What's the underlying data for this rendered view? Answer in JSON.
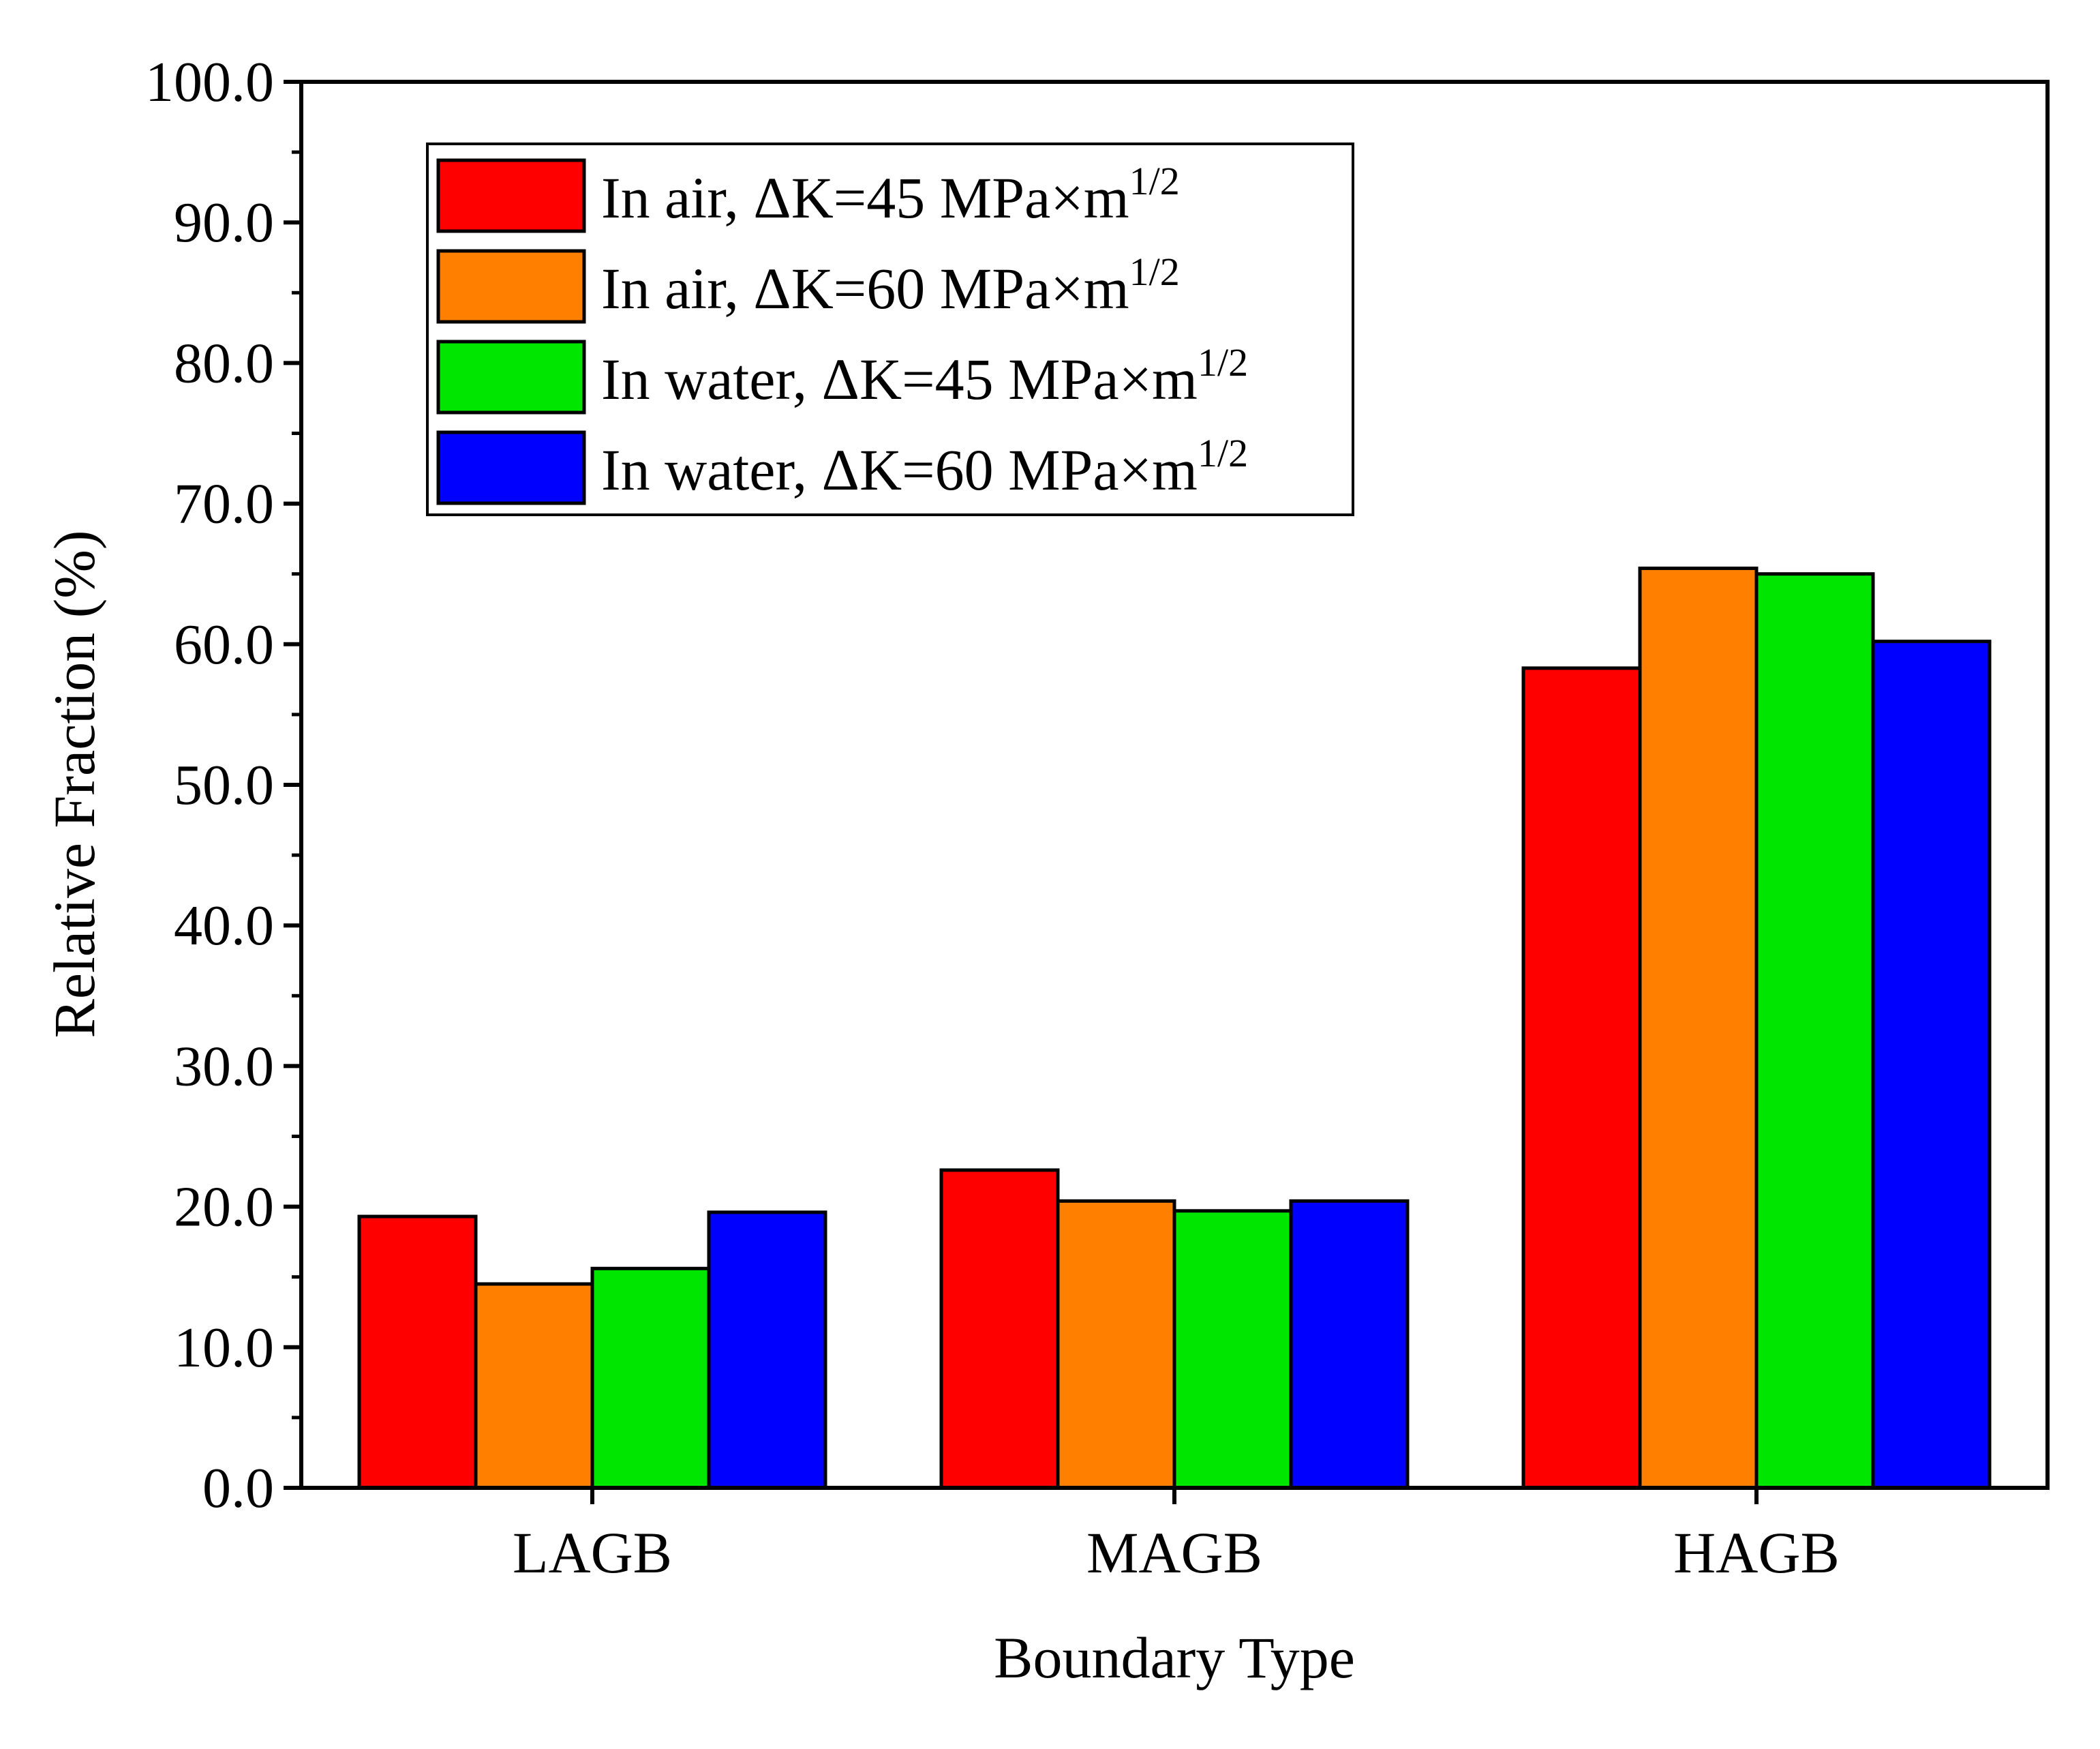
{
  "chart_data": {
    "type": "bar",
    "title": "",
    "xlabel": "Boundary Type",
    "ylabel": "Relative Fraction (%)",
    "ylim": [
      0,
      100
    ],
    "y_ticks": [
      0,
      10,
      20,
      30,
      40,
      50,
      60,
      70,
      80,
      90,
      100
    ],
    "y_tick_labels": [
      "0.0",
      "10.0",
      "20.0",
      "30.0",
      "40.0",
      "50.0",
      "60.0",
      "70.0",
      "80.0",
      "90.0",
      "100.0"
    ],
    "categories": [
      "LAGB",
      "MAGB",
      "HAGB"
    ],
    "legend_position": "top-left",
    "series": [
      {
        "name": "In air, ΔK=45 MPa×m",
        "superscript": "1/2",
        "color": "#ff0000",
        "values": [
          19.3,
          22.6,
          58.3
        ]
      },
      {
        "name": "In air, ΔK=60 MPa×m",
        "superscript": "1/2",
        "color": "#ff8000",
        "values": [
          14.5,
          20.4,
          65.4
        ]
      },
      {
        "name": "In water, ΔK=45 MPa×m",
        "superscript": "1/2",
        "color": "#00e600",
        "values": [
          15.6,
          19.7,
          65.0
        ]
      },
      {
        "name": "In water, ΔK=60 MPa×m",
        "superscript": "1/2",
        "color": "#0000ff",
        "values": [
          19.6,
          20.4,
          60.2
        ]
      }
    ]
  }
}
